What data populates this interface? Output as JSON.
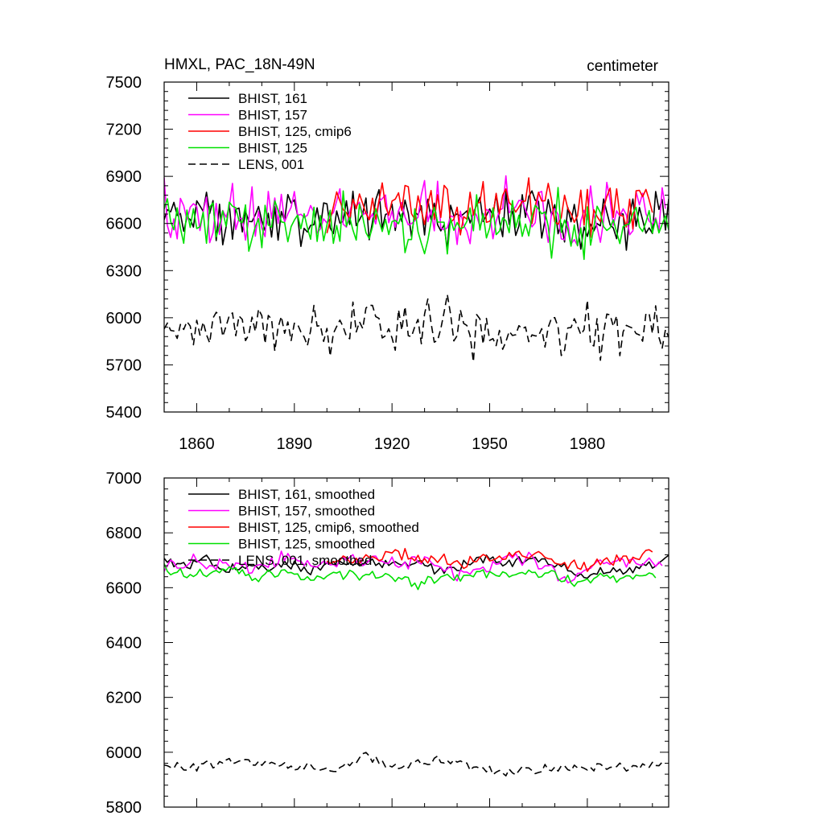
{
  "chart_data": [
    {
      "type": "line",
      "title": "HMXL, PAC_18N-49N",
      "units": "centimeter",
      "xlim": [
        1850,
        2005
      ],
      "ylim": [
        5400,
        7500
      ],
      "xticks": [
        1860,
        1890,
        1920,
        1950,
        1980
      ],
      "yticks": [
        5400,
        5700,
        6000,
        6300,
        6600,
        6900,
        7200,
        7500
      ],
      "ytick_labels": [
        "5400",
        "5700",
        "6000",
        "6300",
        "6600",
        "6900",
        "7200",
        "7500"
      ],
      "xtick_labels": [
        "1860",
        "1890",
        "1920",
        "1950",
        "1980"
      ],
      "legend_location": "top-left",
      "series": [
        {
          "name": "BHIST, 161",
          "color": "#000000",
          "dash": "solid",
          "start": 1850,
          "end": 2005,
          "mean": 6640,
          "amp": 170,
          "seed": 11,
          "smooth": false
        },
        {
          "name": "BHIST, 157",
          "color": "#ff00ff",
          "dash": "solid",
          "start": 1850,
          "end": 2004,
          "mean": 6660,
          "amp": 180,
          "seed": 23,
          "smooth": false
        },
        {
          "name": "BHIST, 125, cmip6",
          "color": "#ff0000",
          "dash": "solid",
          "start": 1900,
          "end": 2000,
          "mean": 6700,
          "amp": 180,
          "seed": 37,
          "smooth": false
        },
        {
          "name": "BHIST, 125",
          "color": "#00e000",
          "dash": "solid",
          "start": 1850,
          "end": 2005,
          "mean": 6610,
          "amp": 160,
          "seed": 41,
          "smooth": false
        },
        {
          "name": "LENS, 001",
          "color": "#000000",
          "dash": "dashed",
          "start": 1850,
          "end": 2005,
          "mean": 5930,
          "amp": 160,
          "seed": 53,
          "smooth": false
        }
      ]
    },
    {
      "type": "line",
      "title": "",
      "units": "",
      "xlim": [
        1850,
        2005
      ],
      "ylim": [
        5800,
        7000
      ],
      "xticks": [
        1860,
        1890,
        1920,
        1950,
        1980
      ],
      "yticks": [
        5800,
        6000,
        6200,
        6400,
        6600,
        6800,
        7000
      ],
      "ytick_labels": [
        "5800",
        "6000",
        "6200",
        "6400",
        "6600",
        "6800",
        "7000"
      ],
      "xtick_labels": [],
      "legend_location": "top-left",
      "series": [
        {
          "name": "BHIST, 161, smoothed",
          "color": "#000000",
          "dash": "solid",
          "start": 1850,
          "end": 2005,
          "mean": 6680,
          "amp": 55,
          "seed": 11,
          "smooth": true
        },
        {
          "name": "BHIST, 157, smoothed",
          "color": "#ff00ff",
          "dash": "solid",
          "start": 1850,
          "end": 2003,
          "mean": 6690,
          "amp": 60,
          "seed": 23,
          "smooth": true
        },
        {
          "name": "BHIST, 125, cmip6, smoothed",
          "color": "#ff0000",
          "dash": "solid",
          "start": 1900,
          "end": 2000,
          "mean": 6700,
          "amp": 60,
          "seed": 37,
          "smooth": true
        },
        {
          "name": "BHIST, 125, smoothed",
          "color": "#00e000",
          "dash": "solid",
          "start": 1850,
          "end": 2001,
          "mean": 6650,
          "amp": 45,
          "seed": 41,
          "smooth": true
        },
        {
          "name": "LENS, 001, smoothed",
          "color": "#000000",
          "dash": "dashed",
          "start": 1850,
          "end": 2003,
          "mean": 5950,
          "amp": 45,
          "seed": 53,
          "smooth": true
        }
      ]
    }
  ]
}
